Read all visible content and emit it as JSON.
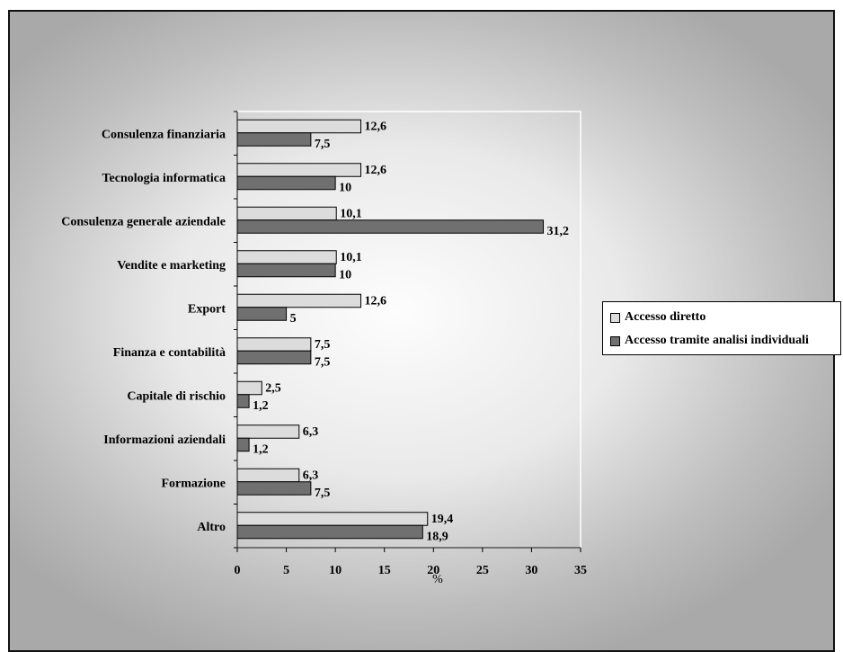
{
  "chart_data": {
    "type": "bar",
    "orientation": "horizontal",
    "categories": [
      "Consulenza finanziaria",
      "Tecnologia informatica",
      "Consulenza generale aziendale",
      "Vendite e marketing",
      "Export",
      "Finanza e contabilità",
      "Capitale di rischio",
      "Informazioni aziendali",
      "Formazione",
      "Altro"
    ],
    "series": [
      {
        "name": "Accesso diretto",
        "values": [
          12.6,
          12.6,
          10.1,
          10.1,
          12.6,
          7.5,
          2.5,
          6.3,
          6.3,
          19.4
        ],
        "labels": [
          "12,6",
          "12,6",
          "10,1",
          "10,1",
          "12,6",
          "7,5",
          "2,5",
          "6,3",
          "6,3",
          "19,4"
        ],
        "color": "#dcdcdc"
      },
      {
        "name": "Accesso tramite analisi individuali",
        "values": [
          7.5,
          10,
          31.2,
          10,
          5,
          7.5,
          1.2,
          1.2,
          7.5,
          18.9
        ],
        "labels": [
          "7,5",
          "10",
          "31,2",
          "10",
          "5",
          "7,5",
          "1,2",
          "1,2",
          "7,5",
          "18,9"
        ],
        "color": "#707070"
      }
    ],
    "xlabel": "%",
    "xlim": [
      0,
      35
    ],
    "xticks": [
      0,
      5,
      10,
      15,
      20,
      25,
      30,
      35
    ],
    "grid": false,
    "legend_position": "right"
  }
}
